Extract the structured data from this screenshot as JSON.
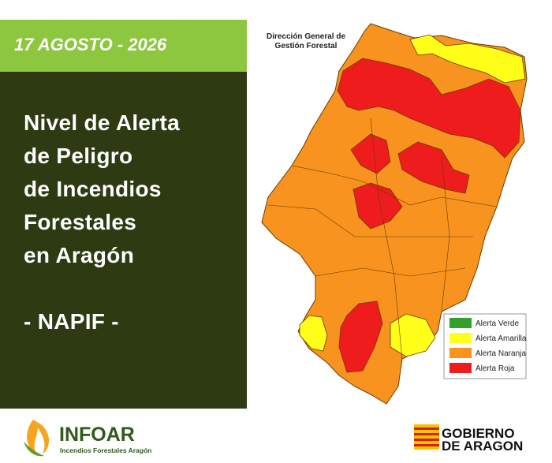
{
  "header": {
    "date": "17 AGOSTO - 2026"
  },
  "title": {
    "lines": [
      "Nivel de Alerta",
      "de Peligro",
      "de Incendios",
      "Forestales",
      "en Aragón"
    ],
    "subtitle": "- NAPIF -"
  },
  "map": {
    "source": [
      "Dirección General de",
      "Gestión Forestal"
    ]
  },
  "legend": {
    "items": [
      "Alerta Verde",
      "Alerta Amarilla",
      "Alerta Naranja",
      "Alerta Roja"
    ]
  },
  "footer": {
    "logo": "INFOAR",
    "logo_subtitle": "Incendios Forestales Aragón",
    "government": [
      "GOBIERNO",
      "DE ARAGON"
    ]
  }
}
